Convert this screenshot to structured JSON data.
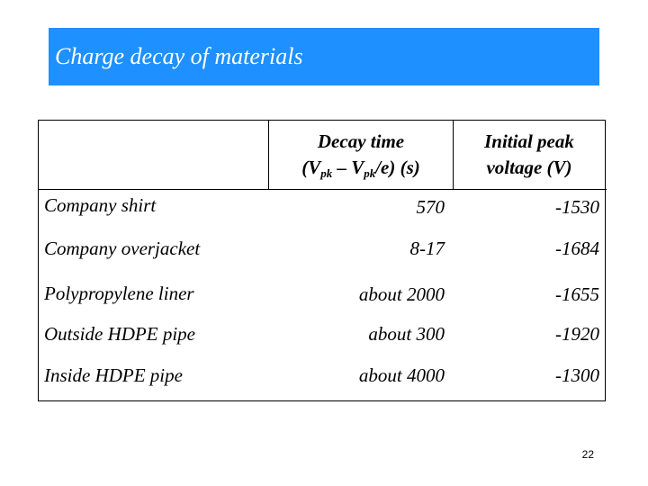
{
  "slide": {
    "title": "Charge decay of materials",
    "page_number": "22"
  },
  "colors": {
    "title_bar": "#1e90ff",
    "title_text": "#ffffff"
  },
  "table": {
    "header_decay_line1": "Decay time",
    "header_decay_line2": {
      "open": "(V",
      "sub1": "pk",
      "mid": " – V",
      "sub2": "pk",
      "close": "/e) (s)"
    },
    "header_voltage_line1": "Initial peak",
    "header_voltage_line2": "voltage (V)",
    "rows": [
      {
        "material": "Company shirt",
        "decay": "570",
        "voltage": "-1530"
      },
      {
        "material": "Company overjacket",
        "decay": "8-17",
        "voltage": "-1684"
      },
      {
        "material": "Polypropylene liner",
        "decay": "about 2000",
        "voltage": "-1655"
      },
      {
        "material": "Outside HDPE pipe",
        "decay": "about 300",
        "voltage": "-1920"
      },
      {
        "material": "Inside HDPE pipe",
        "decay": "about 4000",
        "voltage": "-1300"
      }
    ]
  }
}
